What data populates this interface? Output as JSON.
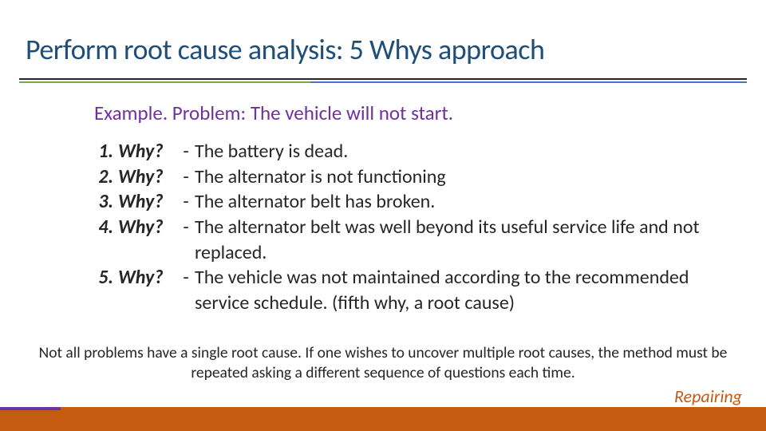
{
  "colors": {
    "title": "#1f4e79",
    "rule_top": "#262626",
    "rule_left": "#70ad47",
    "rule_right": "#4472c4",
    "example": "#7030a0",
    "body": "#262626",
    "footer_bar": "#c55a11",
    "footer_accent": "#7030a0",
    "footer_label": "#c55a11"
  },
  "title": "Perform root cause analysis: 5 Whys approach",
  "example": "Example. Problem: The vehicle will not start.",
  "rows": [
    {
      "n": "1.",
      "why": "Why?",
      "dash": "-",
      "answer": "The battery is dead."
    },
    {
      "n": "2.",
      "why": "Why?",
      "dash": "-",
      "answer": "The alternator is not functioning"
    },
    {
      "n": "3.",
      "why": "Why?",
      "dash": "-",
      "answer": "The alternator belt has broken."
    },
    {
      "n": "4.",
      "why": "Why?",
      "dash": "-",
      "answer": "The alternator belt was well beyond its useful service life and not replaced."
    },
    {
      "n": "5.",
      "why": "Why?",
      "dash": "-",
      "answer": "The vehicle was not maintained according to the recommended service schedule. (fifth why, a root cause)"
    }
  ],
  "note": "Not all problems have a single root cause. If one wishes to uncover multiple root causes, the method must be repeated asking a different sequence of questions each time.",
  "footer_label": "Repairing"
}
